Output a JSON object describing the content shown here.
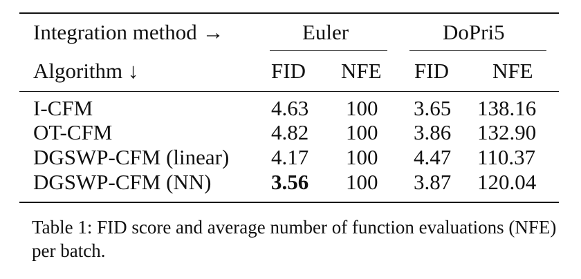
{
  "table": {
    "header_row1": {
      "label": "Integration method →",
      "euler": "Euler",
      "dopri": "DoPri5"
    },
    "header_row2": {
      "label": "Algorithm ↓",
      "cols": [
        "FID",
        "NFE",
        "FID",
        "NFE"
      ]
    },
    "rows": [
      {
        "algorithm": "I-CFM",
        "euler_fid": "4.63",
        "euler_nfe": "100",
        "dopri_fid": "3.65",
        "dopri_nfe": "138.16"
      },
      {
        "algorithm": "OT-CFM",
        "euler_fid": "4.82",
        "euler_nfe": "100",
        "dopri_fid": "3.86",
        "dopri_nfe": "132.90"
      },
      {
        "algorithm": "DGSWP-CFM (linear)",
        "euler_fid": "4.17",
        "euler_nfe": "100",
        "dopri_fid": "4.47",
        "dopri_nfe": "110.37"
      },
      {
        "algorithm": "DGSWP-CFM (NN)",
        "euler_fid": "3.56",
        "euler_nfe": "100",
        "dopri_fid": "3.87",
        "dopri_nfe": "120.04",
        "bold": "euler_fid"
      }
    ]
  },
  "caption": "Table 1: FID score and average number of function evaluations (NFE) per batch."
}
